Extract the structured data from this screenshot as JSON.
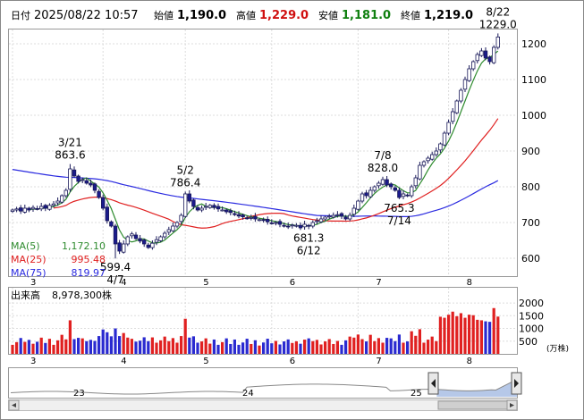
{
  "header": {
    "date_label": "日付",
    "date_value": "2025/08/22 10:57",
    "open_label": "始値",
    "open_value": "1,190.0",
    "high_label": "高値",
    "high_value": "1,229.0",
    "low_label": "安値",
    "low_value": "1,181.0",
    "close_label": "終値",
    "close_value": "1,219.0"
  },
  "colors": {
    "up": "#ffffff",
    "down": "#1a1a8c",
    "ma5": "#2e8b2e",
    "ma25": "#e02020",
    "ma75": "#2a2ae0",
    "vol_up": "#e02020",
    "vol_down": "#2a2ad0",
    "high_text": "#d01010",
    "low_text": "#108010"
  },
  "chart_data": [
    {
      "type": "candlestick",
      "y_ticks": [
        "1200",
        "1100",
        "1000",
        "900",
        "800",
        "700",
        "600"
      ],
      "ylim": [
        550,
        1240
      ],
      "x_month_labels": [
        {
          "label": "3",
          "index": 0
        },
        {
          "label": "4",
          "index": 22
        },
        {
          "label": "5",
          "index": 42
        },
        {
          "label": "6",
          "index": 63
        },
        {
          "label": "7",
          "index": 84
        },
        {
          "label": "8",
          "index": 106
        }
      ],
      "legend": [
        {
          "name": "MA(5)",
          "value": "1,172.10"
        },
        {
          "name": "MA(25)",
          "value": "995.48"
        },
        {
          "name": "MA(75)",
          "value": "819.97"
        }
      ],
      "annotations": [
        {
          "date": "3/21",
          "value": "863.6",
          "index": 14,
          "price": 863.6,
          "pos": "above"
        },
        {
          "date": "4/7",
          "value": "599.4",
          "index": 25,
          "price": 599.4,
          "pos": "below"
        },
        {
          "date": "5/2",
          "value": "786.4",
          "index": 42,
          "price": 786.4,
          "pos": "above"
        },
        {
          "date": "6/12",
          "value": "681.3",
          "index": 72,
          "price": 681.3,
          "pos": "below"
        },
        {
          "date": "7/8",
          "value": "828.0",
          "index": 90,
          "price": 828.0,
          "pos": "above"
        },
        {
          "date": "7/14",
          "value": "765.3",
          "index": 94,
          "price": 765.3,
          "pos": "below"
        },
        {
          "date": "8/22",
          "value": "1229.0",
          "index": 118,
          "price": 1229.0,
          "pos": "above"
        }
      ],
      "closes": [
        735,
        738,
        732,
        740,
        735,
        742,
        738,
        745,
        740,
        748,
        752,
        760,
        775,
        790,
        850,
        830,
        815,
        820,
        810,
        805,
        790,
        770,
        740,
        705,
        690,
        640,
        620,
        640,
        660,
        668,
        655,
        648,
        640,
        630,
        642,
        652,
        660,
        670,
        680,
        690,
        700,
        720,
        780,
        760,
        745,
        735,
        740,
        745,
        748,
        742,
        738,
        735,
        730,
        728,
        722,
        718,
        716,
        712,
        714,
        710,
        708,
        706,
        702,
        698,
        700,
        695,
        690,
        688,
        693,
        692,
        685,
        695,
        690,
        700,
        705,
        710,
        715,
        718,
        720,
        722,
        718,
        710,
        720,
        740,
        760,
        780,
        775,
        790,
        800,
        810,
        820,
        805,
        800,
        790,
        770,
        780,
        775,
        800,
        825,
        860,
        870,
        880,
        890,
        900,
        920,
        950,
        980,
        1010,
        1040,
        1070,
        1100,
        1130,
        1150,
        1170,
        1180,
        1160,
        1150,
        1190,
        1219
      ],
      "volume": {
        "label": "出来高",
        "value": "8,978,300株",
        "unit": "(万株)",
        "y_ticks": [
          "2000",
          "1500",
          "1000",
          "500"
        ],
        "ylim": [
          0,
          2600
        ]
      },
      "navigator": {
        "year_labels": [
          "23",
          "24",
          "25"
        ]
      }
    }
  ]
}
